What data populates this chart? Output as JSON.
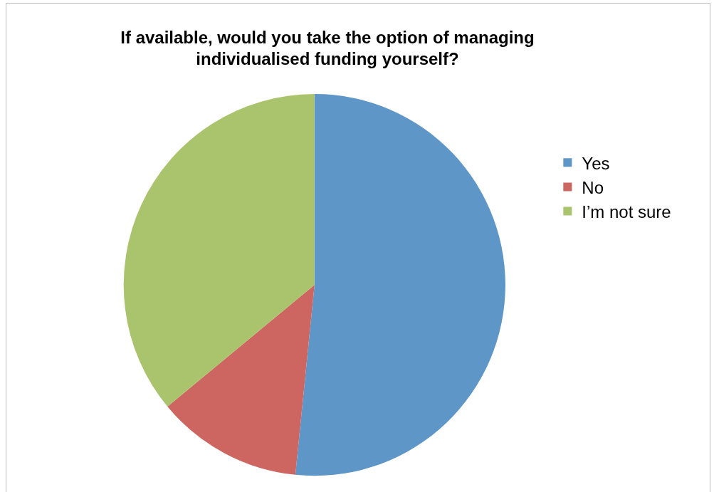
{
  "chart_data": {
    "type": "pie",
    "title": "If available, would you take the option of managing individualised funding yourself?",
    "categories": [
      "Yes",
      "No",
      "I’m not sure"
    ],
    "values": [
      51.6,
      12.4,
      36.0
    ],
    "colors": [
      "#5f96c8",
      "#cd6660",
      "#aac46d"
    ],
    "legend": "right"
  }
}
